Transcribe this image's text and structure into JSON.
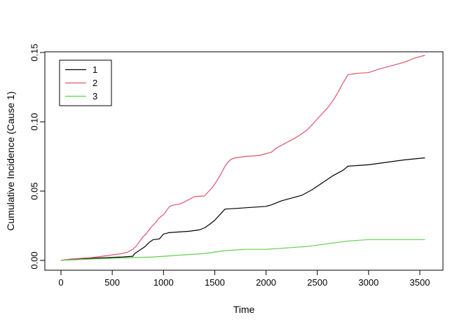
{
  "chart_data": {
    "type": "line",
    "title": "",
    "xlabel": "Time",
    "ylabel": "Cumulative Incidence (Cause 1)",
    "xlim": [
      0,
      3550
    ],
    "ylim": [
      0,
      0.15
    ],
    "grid": false,
    "x_ticks": [
      0,
      500,
      1000,
      1500,
      2000,
      2500,
      3000,
      3500
    ],
    "x_tick_labels": [
      "0",
      "500",
      "1000",
      "1500",
      "2000",
      "2500",
      "3000",
      "3500"
    ],
    "y_ticks": [
      0.0,
      0.05,
      0.1,
      0.15
    ],
    "y_tick_labels": [
      "0.00",
      "0.05",
      "0.10",
      "0.15"
    ],
    "legend": {
      "position": "top-left",
      "entries": [
        {
          "label": "1",
          "color": "#000000"
        },
        {
          "label": "2",
          "color": "#df536b"
        },
        {
          "label": "3",
          "color": "#61d04f"
        }
      ]
    },
    "series": [
      {
        "name": "1",
        "color": "#000000",
        "points": [
          [
            0,
            0
          ],
          [
            60,
            0.0005
          ],
          [
            150,
            0.001
          ],
          [
            300,
            0.0015
          ],
          [
            450,
            0.002
          ],
          [
            600,
            0.0025
          ],
          [
            700,
            0.003
          ],
          [
            720,
            0.005
          ],
          [
            780,
            0.008
          ],
          [
            820,
            0.01
          ],
          [
            860,
            0.013
          ],
          [
            900,
            0.015
          ],
          [
            960,
            0.0155
          ],
          [
            1000,
            0.019
          ],
          [
            1050,
            0.02
          ],
          [
            1150,
            0.0205
          ],
          [
            1250,
            0.021
          ],
          [
            1350,
            0.022
          ],
          [
            1400,
            0.0235
          ],
          [
            1450,
            0.026
          ],
          [
            1500,
            0.029
          ],
          [
            1550,
            0.033
          ],
          [
            1600,
            0.037
          ],
          [
            1700,
            0.0375
          ],
          [
            1800,
            0.038
          ],
          [
            1900,
            0.0385
          ],
          [
            2000,
            0.039
          ],
          [
            2050,
            0.04
          ],
          [
            2150,
            0.043
          ],
          [
            2250,
            0.045
          ],
          [
            2350,
            0.047
          ],
          [
            2450,
            0.051
          ],
          [
            2550,
            0.056
          ],
          [
            2650,
            0.061
          ],
          [
            2750,
            0.065
          ],
          [
            2800,
            0.068
          ],
          [
            2900,
            0.0685
          ],
          [
            3000,
            0.069
          ],
          [
            3100,
            0.07
          ],
          [
            3200,
            0.071
          ],
          [
            3350,
            0.0725
          ],
          [
            3550,
            0.074
          ]
        ]
      },
      {
        "name": "2",
        "color": "#df536b",
        "points": [
          [
            0,
            0
          ],
          [
            100,
            0.001
          ],
          [
            200,
            0.0015
          ],
          [
            300,
            0.002
          ],
          [
            400,
            0.003
          ],
          [
            500,
            0.004
          ],
          [
            550,
            0.0045
          ],
          [
            600,
            0.005
          ],
          [
            650,
            0.006
          ],
          [
            700,
            0.008
          ],
          [
            730,
            0.01
          ],
          [
            760,
            0.013
          ],
          [
            800,
            0.017
          ],
          [
            840,
            0.02
          ],
          [
            880,
            0.024
          ],
          [
            920,
            0.027
          ],
          [
            950,
            0.03
          ],
          [
            980,
            0.032
          ],
          [
            1000,
            0.033
          ],
          [
            1030,
            0.036
          ],
          [
            1060,
            0.039
          ],
          [
            1100,
            0.04
          ],
          [
            1150,
            0.0405
          ],
          [
            1200,
            0.042
          ],
          [
            1250,
            0.044
          ],
          [
            1300,
            0.046
          ],
          [
            1400,
            0.0465
          ],
          [
            1430,
            0.049
          ],
          [
            1470,
            0.052
          ],
          [
            1500,
            0.055
          ],
          [
            1550,
            0.061
          ],
          [
            1600,
            0.068
          ],
          [
            1630,
            0.071
          ],
          [
            1660,
            0.073
          ],
          [
            1700,
            0.074
          ],
          [
            1800,
            0.075
          ],
          [
            1900,
            0.0755
          ],
          [
            1950,
            0.076
          ],
          [
            2000,
            0.077
          ],
          [
            2050,
            0.078
          ],
          [
            2100,
            0.081
          ],
          [
            2200,
            0.085
          ],
          [
            2300,
            0.089
          ],
          [
            2400,
            0.094
          ],
          [
            2450,
            0.098
          ],
          [
            2500,
            0.102
          ],
          [
            2550,
            0.106
          ],
          [
            2600,
            0.11
          ],
          [
            2650,
            0.115
          ],
          [
            2700,
            0.121
          ],
          [
            2750,
            0.128
          ],
          [
            2800,
            0.134
          ],
          [
            2900,
            0.135
          ],
          [
            3000,
            0.1355
          ],
          [
            3100,
            0.138
          ],
          [
            3200,
            0.14
          ],
          [
            3350,
            0.143
          ],
          [
            3450,
            0.146
          ],
          [
            3550,
            0.148
          ]
        ]
      },
      {
        "name": "3",
        "color": "#61d04f",
        "points": [
          [
            0,
            0
          ],
          [
            150,
            0.0005
          ],
          [
            300,
            0.001
          ],
          [
            500,
            0.0015
          ],
          [
            700,
            0.002
          ],
          [
            900,
            0.0025
          ],
          [
            1000,
            0.003
          ],
          [
            1100,
            0.0035
          ],
          [
            1200,
            0.004
          ],
          [
            1300,
            0.0045
          ],
          [
            1400,
            0.005
          ],
          [
            1500,
            0.006
          ],
          [
            1550,
            0.0065
          ],
          [
            1600,
            0.007
          ],
          [
            1700,
            0.0075
          ],
          [
            1800,
            0.008
          ],
          [
            2000,
            0.008
          ],
          [
            2100,
            0.0085
          ],
          [
            2200,
            0.009
          ],
          [
            2300,
            0.0095
          ],
          [
            2400,
            0.01
          ],
          [
            2500,
            0.011
          ],
          [
            2600,
            0.012
          ],
          [
            2700,
            0.013
          ],
          [
            2800,
            0.014
          ],
          [
            2900,
            0.0145
          ],
          [
            3000,
            0.015
          ],
          [
            3200,
            0.015
          ],
          [
            3550,
            0.015
          ]
        ]
      }
    ]
  }
}
